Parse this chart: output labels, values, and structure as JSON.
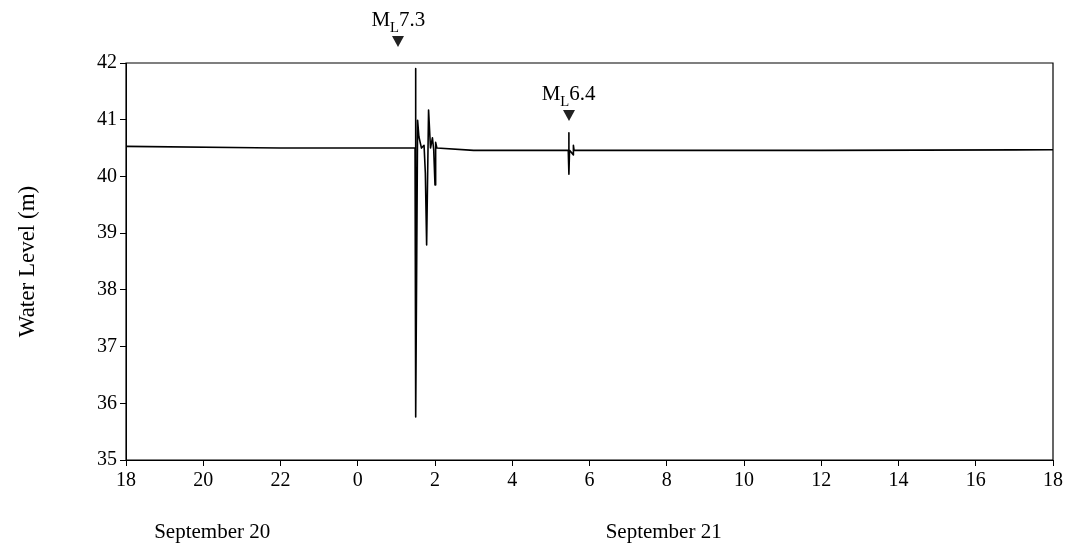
{
  "chart_data": {
    "type": "line",
    "ylabel": "Water Level (m)",
    "xlim": [
      "--09-20T18:00",
      "--09-21T18:00"
    ],
    "ylim": [
      35,
      42
    ],
    "xticks": [
      {
        "value": "--09-20T18:00",
        "label": "18"
      },
      {
        "value": "--09-20T20:00",
        "label": "20"
      },
      {
        "value": "--09-20T22:00",
        "label": "22"
      },
      {
        "value": "--09-21T00:00",
        "label": "0"
      },
      {
        "value": "--09-21T02:00",
        "label": "2"
      },
      {
        "value": "--09-21T04:00",
        "label": "4"
      },
      {
        "value": "--09-21T06:00",
        "label": "6"
      },
      {
        "value": "--09-21T08:00",
        "label": "8"
      },
      {
        "value": "--09-21T10:00",
        "label": "10"
      },
      {
        "value": "--09-21T12:00",
        "label": "12"
      },
      {
        "value": "--09-21T14:00",
        "label": "14"
      },
      {
        "value": "--09-21T16:00",
        "label": "16"
      },
      {
        "value": "--09-21T18:00",
        "label": "18"
      }
    ],
    "yticks": [
      35,
      36,
      37,
      38,
      39,
      40,
      41,
      42
    ],
    "series": [
      {
        "color": "#000000",
        "x": [
          "--09-20T18:00",
          "--09-20T22:00",
          "--09-21T01:29",
          "--09-21T01:30",
          "--09-21T01:30",
          "--09-21T01:33",
          "--09-21T01:35",
          "--09-21T01:39",
          "--09-21T01:43",
          "--09-21T01:45",
          "--09-21T01:47",
          "--09-21T01:50",
          "--09-21T01:53",
          "--09-21T01:56",
          "--09-21T01:58",
          "--09-21T02:00",
          "--09-21T02:01",
          "--09-21T02:03",
          "--09-21T03:00",
          "--09-21T05:27",
          "--09-21T05:28",
          "--09-21T05:28",
          "--09-21T05:29",
          "--09-21T05:35",
          "--09-21T05:35",
          "--09-21T05:36",
          "--09-21T12:00",
          "--09-21T18:00"
        ],
        "values": [
          40.53,
          40.5,
          40.5,
          41.9,
          35.76,
          40.99,
          40.7,
          40.5,
          40.55,
          40.06,
          38.79,
          41.17,
          40.5,
          40.68,
          40.47,
          39.85,
          40.6,
          40.5,
          40.46,
          40.46,
          40.77,
          40.04,
          40.46,
          40.38,
          40.55,
          40.46,
          40.46,
          40.47
        ]
      }
    ],
    "annotations": [
      "M$_{L}$7.3",
      "M$_{L}$6.4",
      "September 20",
      "September 21"
    ],
    "grid": false,
    "legend": false,
    "marker": "none",
    "line_style": "solid"
  }
}
